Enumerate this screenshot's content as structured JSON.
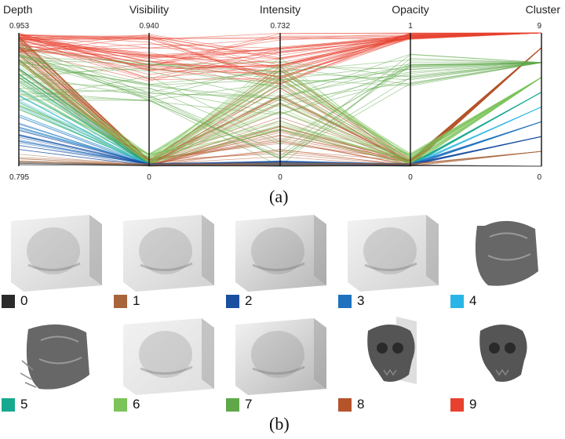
{
  "chart_data": {
    "type": "parallel-coordinates",
    "axes": [
      {
        "name": "Depth",
        "max_label": "0.953",
        "min_label": "0.795"
      },
      {
        "name": "Visibility",
        "max_label": "0.940",
        "min_label": "0"
      },
      {
        "name": "Intensity",
        "max_label": "0.732",
        "min_label": "0"
      },
      {
        "name": "Opacity",
        "max_label": "1",
        "min_label": "0"
      },
      {
        "name": "Cluster",
        "max_label": "9",
        "min_label": "0"
      }
    ],
    "cluster_colors": [
      "#2b2b2b",
      "#a8643a",
      "#1a4fa0",
      "#1f72bf",
      "#29b6e6",
      "#17a98f",
      "#7cc35a",
      "#5fa84a",
      "#b5532a",
      "#e8412f"
    ],
    "line_groups": [
      {
        "cluster": 9,
        "color": "#e8412f",
        "count": 45,
        "depth": [
          0.93,
          0.953
        ],
        "visibility": [
          0.6,
          0.94
        ],
        "intensity": [
          0.45,
          0.732
        ],
        "opacity": [
          0.95,
          1.0
        ]
      },
      {
        "cluster": 8,
        "color": "#b5532a",
        "count": 40,
        "depth": [
          0.9,
          0.95
        ],
        "visibility": [
          0.0,
          0.05
        ],
        "intensity": [
          0.05,
          0.55
        ],
        "opacity": [
          0.0,
          0.05
        ]
      },
      {
        "cluster": 7,
        "color": "#5fa84a",
        "count": 25,
        "depth": [
          0.87,
          0.94
        ],
        "visibility": [
          0.45,
          0.75
        ],
        "intensity": [
          0.0,
          0.6
        ],
        "opacity": [
          0.6,
          0.85
        ]
      },
      {
        "cluster": 6,
        "color": "#7cc35a",
        "count": 30,
        "depth": [
          0.86,
          0.93
        ],
        "visibility": [
          0.0,
          0.1
        ],
        "intensity": [
          0.1,
          0.6
        ],
        "opacity": [
          0.0,
          0.1
        ]
      },
      {
        "cluster": 5,
        "color": "#17a98f",
        "count": 14,
        "depth": [
          0.86,
          0.92
        ],
        "visibility": [
          0.0,
          0.02
        ],
        "intensity": [
          0.0,
          0.02
        ],
        "opacity": [
          0.0,
          0.02
        ]
      },
      {
        "cluster": 4,
        "color": "#29b6e6",
        "count": 8,
        "depth": [
          0.84,
          0.88
        ],
        "visibility": [
          0.0,
          0.02
        ],
        "intensity": [
          0.0,
          0.02
        ],
        "opacity": [
          0.0,
          0.02
        ]
      },
      {
        "cluster": 3,
        "color": "#1f72bf",
        "count": 14,
        "depth": [
          0.82,
          0.86
        ],
        "visibility": [
          0.0,
          0.02
        ],
        "intensity": [
          0.0,
          0.03
        ],
        "opacity": [
          0.0,
          0.02
        ]
      },
      {
        "cluster": 2,
        "color": "#1a4fa0",
        "count": 12,
        "depth": [
          0.81,
          0.85
        ],
        "visibility": [
          0.0,
          0.02
        ],
        "intensity": [
          0.0,
          0.03
        ],
        "opacity": [
          0.0,
          0.02
        ]
      },
      {
        "cluster": 1,
        "color": "#a8643a",
        "count": 8,
        "depth": [
          0.8,
          0.81
        ],
        "visibility": [
          0.0,
          0.02
        ],
        "intensity": [
          0.0,
          0.02
        ],
        "opacity": [
          0.0,
          0.02
        ]
      },
      {
        "cluster": 0,
        "color": "#2b2b2b",
        "count": 5,
        "depth": [
          0.795,
          0.8
        ],
        "visibility": [
          0.0,
          0.01
        ],
        "intensity": [
          0.0,
          0.01
        ],
        "opacity": [
          0.0,
          0.01
        ]
      }
    ]
  },
  "captions": {
    "a": "(a)",
    "b": "(b)"
  },
  "clusters": [
    {
      "label": "0",
      "color": "#2b2b2b",
      "shape": "cube",
      "shade": "light"
    },
    {
      "label": "1",
      "color": "#a8643a",
      "shape": "cube",
      "shade": "light"
    },
    {
      "label": "2",
      "color": "#1a4fa0",
      "shape": "cube",
      "shade": "medium"
    },
    {
      "label": "3",
      "color": "#1f72bf",
      "shape": "cube",
      "shade": "light"
    },
    {
      "label": "4",
      "color": "#29b6e6",
      "shape": "head-dense",
      "shade": "dark"
    },
    {
      "label": "5",
      "color": "#17a98f",
      "shape": "head-fibers",
      "shade": "dark"
    },
    {
      "label": "6",
      "color": "#7cc35a",
      "shape": "cube",
      "shade": "faint"
    },
    {
      "label": "7",
      "color": "#5fa84a",
      "shape": "cube",
      "shade": "medium"
    },
    {
      "label": "8",
      "color": "#b5532a",
      "shape": "skull-panel",
      "shade": "dark"
    },
    {
      "label": "9",
      "color": "#e8412f",
      "shape": "skull",
      "shade": "dark"
    }
  ]
}
